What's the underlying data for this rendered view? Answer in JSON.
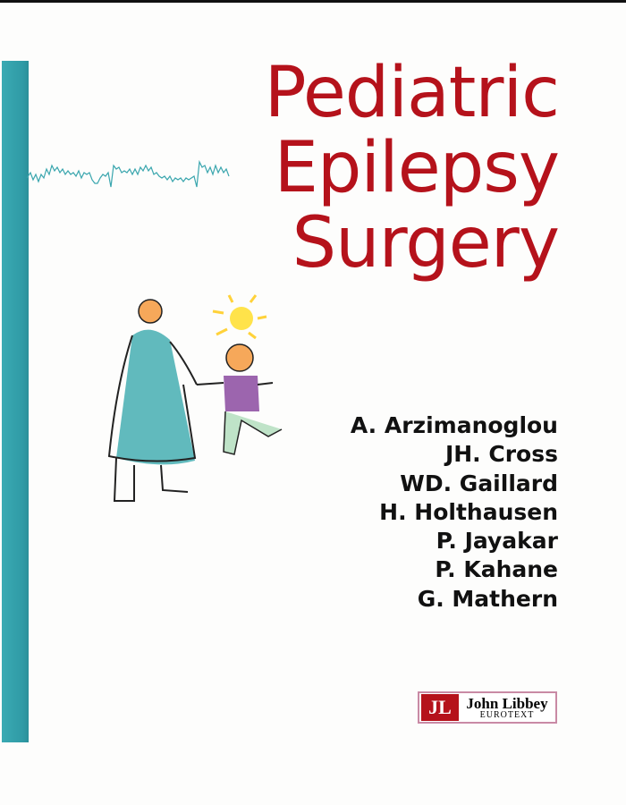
{
  "cover": {
    "title_lines": [
      "Pediatric",
      "Epilepsy",
      "Surgery"
    ],
    "authors": [
      "A. Arzimanoglou",
      "JH. Cross",
      "WD. Gaillard",
      "H. Holthausen",
      "P. Jayakar",
      "P. Kahane",
      "G. Mathern"
    ],
    "publisher": {
      "mark": "JL",
      "name": "John Libbey",
      "subname": "EUROTEXT"
    },
    "colors": {
      "title": "#b5121b",
      "spine": "#3aaab3",
      "eeg": "#3aa6ae"
    }
  }
}
